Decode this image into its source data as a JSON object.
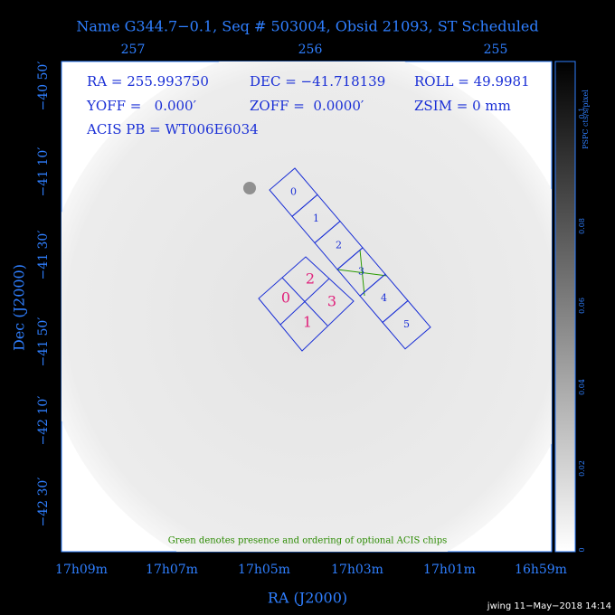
{
  "header": {
    "title": "Name G344.7−0.1, Seq # 503004, Obsid 21093, ST Scheduled"
  },
  "axes": {
    "top_labels": [
      "257",
      "256",
      "255"
    ],
    "left_labels": [
      "−40 50′",
      "−41 10′",
      "−41 30′",
      "−41 50′",
      "−42 10′",
      "−42 30′"
    ],
    "bottom_labels": [
      "17h09m",
      "17h07m",
      "17h05m",
      "17h03m",
      "17h01m",
      "16h59m"
    ],
    "x_title": "RA (J2000)",
    "y_title": "Dec (J2000)"
  },
  "info": {
    "line1": [
      "RA = 255.993750",
      "DEC = −41.718139",
      "ROLL = 49.9981"
    ],
    "line2": [
      "YOFF =   0.000′",
      "ZOFF =  0.0000′",
      "ZSIM = 0 mm"
    ],
    "line3": "ACIS PB = WT006E6034"
  },
  "acis_s_chips": [
    "0",
    "1",
    "2",
    "3",
    "4",
    "5"
  ],
  "acis_i_chips": [
    "0",
    "2",
    "3",
    "1"
  ],
  "note": "Green denotes presence and ordering of optional ACIS chips",
  "colorbar": {
    "label": "PSPC cts/s/pixel",
    "ticks": [
      "0",
      "0.02",
      "0.04",
      "0.06",
      "0.08",
      "0.1"
    ]
  },
  "footer": "jwing 11−May−2018 14:14"
}
